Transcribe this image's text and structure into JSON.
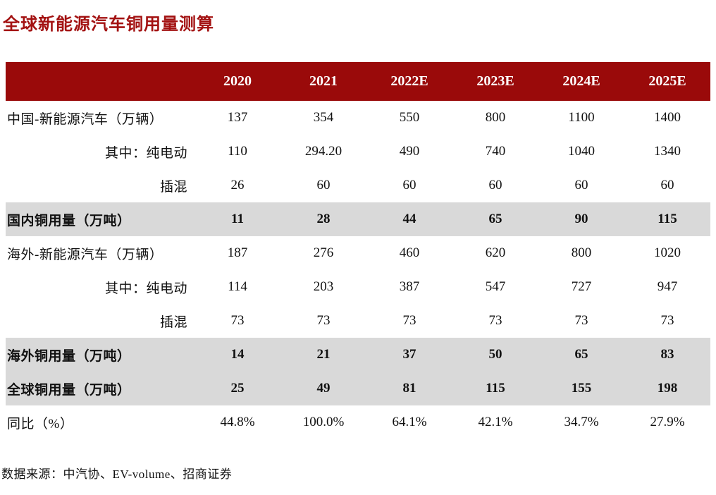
{
  "page": {
    "title": "全球新能源汽车铜用量测算",
    "source_note": "数据来源：中汽协、EV-volume、招商证券"
  },
  "colors": {
    "header_bg": "#9A0A0A",
    "header_text": "#FFFFFF",
    "title_red": "#A31212",
    "highlight_row_bg": "#D9D9D9",
    "body_text": "#111111"
  },
  "table": {
    "corner_label": "",
    "columns": [
      "2020",
      "2021",
      "2022E",
      "2023E",
      "2024E",
      "2025E"
    ],
    "rows": [
      {
        "label": "中国-新能源汽车（万辆）",
        "align": "left",
        "style": "normal",
        "values": [
          "137",
          "354",
          "550",
          "800",
          "1100",
          "1400"
        ]
      },
      {
        "label": "其中：纯电动",
        "align": "right",
        "style": "normal",
        "values": [
          "110",
          "294.20",
          "490",
          "740",
          "1040",
          "1340"
        ]
      },
      {
        "label": "插混",
        "align": "right",
        "style": "normal",
        "values": [
          "26",
          "60",
          "60",
          "60",
          "60",
          "60"
        ]
      },
      {
        "label": "国内铜用量（万吨）",
        "align": "left",
        "style": "highlight",
        "values": [
          "11",
          "28",
          "44",
          "65",
          "90",
          "115"
        ]
      },
      {
        "label": "海外-新能源汽车（万辆）",
        "align": "left",
        "style": "normal",
        "values": [
          "187",
          "276",
          "460",
          "620",
          "800",
          "1020"
        ]
      },
      {
        "label": "其中：纯电动",
        "align": "right",
        "style": "normal",
        "values": [
          "114",
          "203",
          "387",
          "547",
          "727",
          "947"
        ]
      },
      {
        "label": "插混",
        "align": "right",
        "style": "normal",
        "values": [
          "73",
          "73",
          "73",
          "73",
          "73",
          "73"
        ]
      },
      {
        "label": "海外铜用量（万吨）",
        "align": "left",
        "style": "highlight",
        "values": [
          "14",
          "21",
          "37",
          "50",
          "65",
          "83"
        ]
      },
      {
        "label": "全球铜用量（万吨）",
        "align": "left",
        "style": "highlight",
        "values": [
          "25",
          "49",
          "81",
          "115",
          "155",
          "198"
        ]
      },
      {
        "label": "同比（%）",
        "align": "left",
        "style": "normal",
        "values": [
          "44.8%",
          "100.0%",
          "64.1%",
          "42.1%",
          "34.7%",
          "27.9%"
        ]
      }
    ]
  }
}
